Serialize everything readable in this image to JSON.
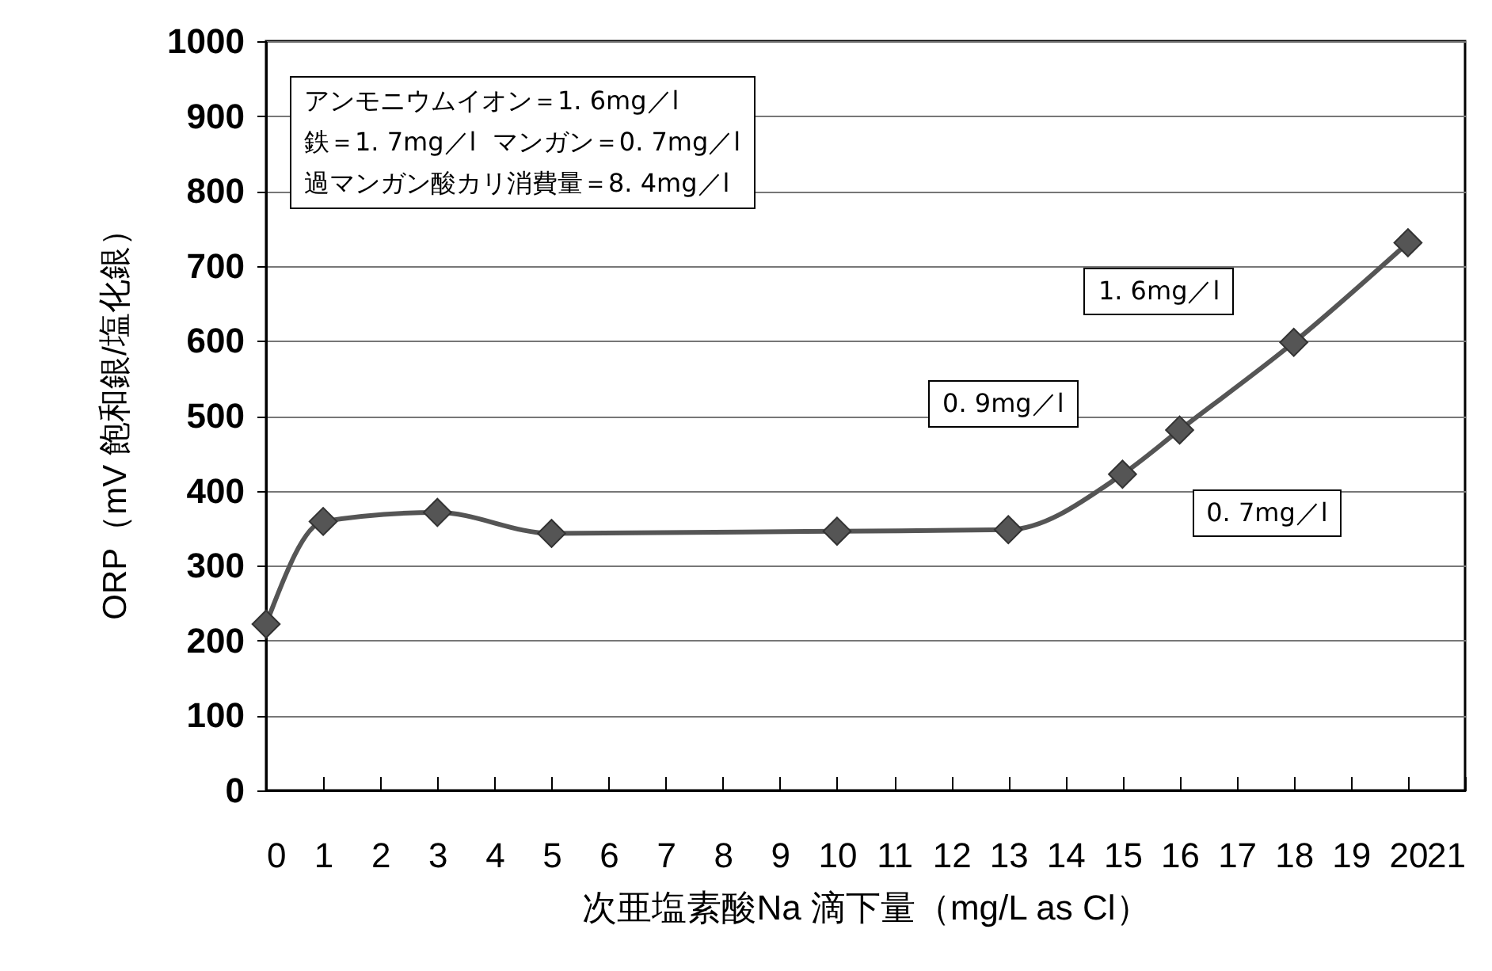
{
  "chart_data": {
    "type": "line",
    "xlabel": "次亜塩素酸Na 滴下量（mg/L as Cl）",
    "ylabel": "ORP（mV 飽和銀/塩化銀）",
    "x": [
      0,
      1,
      3,
      5,
      10,
      13,
      15,
      16,
      18,
      20
    ],
    "series": [
      {
        "color": "#555555",
        "values": [
          222,
          359,
          371,
          343,
          346,
          348,
          422,
          481,
          598,
          731
        ]
      }
    ],
    "xlim": [
      0,
      21
    ],
    "xticks": [
      0,
      1,
      2,
      3,
      4,
      5,
      6,
      7,
      8,
      9,
      10,
      11,
      12,
      13,
      14,
      15,
      16,
      17,
      18,
      19,
      20,
      21
    ],
    "ylim": [
      0,
      1000
    ],
    "yticks": [
      0,
      100,
      200,
      300,
      400,
      500,
      600,
      700,
      800,
      900,
      1000
    ],
    "grid": "y",
    "marker": "diamond",
    "line_style": "solid",
    "annotations": [
      "アンモニウムイオン＝1. 6mg／l\n鉄＝1. 7mg／l  マンガン＝0. 7mg／l\n過マンガン酸カリ消費量＝8. 4mg／l",
      "0. 7mg／l",
      "0. 9mg／l",
      "1. 6mg／l"
    ]
  }
}
